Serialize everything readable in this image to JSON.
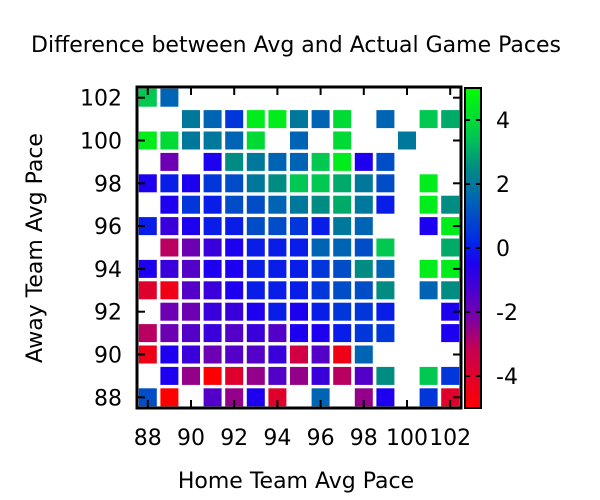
{
  "chart_data": {
    "type": "heatmap",
    "title": "Difference between Avg and Actual Game Paces",
    "xlabel": "Home Team Avg Pace",
    "ylabel": "Away Team Avg Pace",
    "xlim": [
      87.5,
      102.5
    ],
    "ylim": [
      87.5,
      102.5
    ],
    "x_ticks": [
      88,
      90,
      92,
      94,
      96,
      98,
      100,
      102
    ],
    "y_ticks": [
      88,
      90,
      92,
      94,
      96,
      98,
      100,
      102
    ],
    "colorbar": {
      "range": [
        -5,
        5
      ],
      "ticks": [
        -4,
        -2,
        0,
        2,
        4
      ]
    },
    "grid": false,
    "legend": "none",
    "cells": [
      [
        88,
        102,
        3.5
      ],
      [
        89,
        102,
        1.5
      ],
      [
        90,
        101,
        2.0
      ],
      [
        91,
        101,
        1.5
      ],
      [
        92,
        101,
        0.5
      ],
      [
        93,
        101,
        4.5
      ],
      [
        94,
        101,
        4.5
      ],
      [
        95,
        101,
        2.0
      ],
      [
        96,
        101,
        1.5
      ],
      [
        97,
        101,
        4.0
      ],
      [
        99,
        101,
        1.5
      ],
      [
        101,
        101,
        3.5
      ],
      [
        102,
        101,
        3.0
      ],
      [
        88,
        100,
        4.5
      ],
      [
        89,
        100,
        4.0
      ],
      [
        90,
        100,
        2.0
      ],
      [
        91,
        100,
        2.0
      ],
      [
        92,
        100,
        1.5
      ],
      [
        93,
        100,
        4.0
      ],
      [
        95,
        100,
        1.5
      ],
      [
        97,
        100,
        4.0
      ],
      [
        100,
        100,
        2.0
      ],
      [
        89,
        99,
        -2.0
      ],
      [
        91,
        99,
        -0.5
      ],
      [
        92,
        99,
        2.5
      ],
      [
        93,
        99,
        2.0
      ],
      [
        94,
        99,
        1.5
      ],
      [
        95,
        99,
        1.5
      ],
      [
        96,
        99,
        3.5
      ],
      [
        97,
        99,
        4.5
      ],
      [
        98,
        99,
        -0.5
      ],
      [
        99,
        99,
        1.0
      ],
      [
        88,
        98,
        -0.5
      ],
      [
        89,
        98,
        0.0
      ],
      [
        90,
        98,
        -0.5
      ],
      [
        91,
        98,
        0.5
      ],
      [
        92,
        98,
        1.0
      ],
      [
        93,
        98,
        2.0
      ],
      [
        94,
        98,
        2.5
      ],
      [
        95,
        98,
        3.5
      ],
      [
        96,
        98,
        3.5
      ],
      [
        97,
        98,
        3.0
      ],
      [
        98,
        98,
        2.0
      ],
      [
        99,
        98,
        1.0
      ],
      [
        101,
        98,
        4.5
      ],
      [
        89,
        97,
        -0.5
      ],
      [
        90,
        97,
        0.5
      ],
      [
        91,
        97,
        0.0
      ],
      [
        92,
        97,
        1.0
      ],
      [
        93,
        97,
        1.0
      ],
      [
        94,
        97,
        1.5
      ],
      [
        95,
        97,
        2.0
      ],
      [
        96,
        97,
        2.5
      ],
      [
        97,
        97,
        3.0
      ],
      [
        98,
        97,
        2.0
      ],
      [
        99,
        97,
        0.0
      ],
      [
        101,
        97,
        4.5
      ],
      [
        102,
        97,
        2.5
      ],
      [
        88,
        96,
        0.0
      ],
      [
        89,
        96,
        -1.0
      ],
      [
        90,
        96,
        -0.5
      ],
      [
        91,
        96,
        0.0
      ],
      [
        92,
        96,
        0.0
      ],
      [
        93,
        96,
        1.0
      ],
      [
        94,
        96,
        1.0
      ],
      [
        95,
        96,
        0.5
      ],
      [
        96,
        96,
        0.0
      ],
      [
        97,
        96,
        2.0
      ],
      [
        98,
        96,
        1.5
      ],
      [
        101,
        96,
        -0.5
      ],
      [
        102,
        96,
        4.5
      ],
      [
        89,
        95,
        -3.0
      ],
      [
        90,
        95,
        -2.0
      ],
      [
        91,
        95,
        -1.0
      ],
      [
        92,
        95,
        -0.5
      ],
      [
        93,
        95,
        0.0
      ],
      [
        94,
        95,
        0.0
      ],
      [
        95,
        95,
        0.0
      ],
      [
        96,
        95,
        1.5
      ],
      [
        97,
        95,
        1.5
      ],
      [
        98,
        95,
        1.0
      ],
      [
        99,
        95,
        3.5
      ],
      [
        102,
        95,
        3.0
      ],
      [
        88,
        94,
        -0.5
      ],
      [
        89,
        94,
        -1.0
      ],
      [
        90,
        94,
        -1.5
      ],
      [
        91,
        94,
        -0.5
      ],
      [
        92,
        94,
        -0.5
      ],
      [
        93,
        94,
        0.0
      ],
      [
        94,
        94,
        0.0
      ],
      [
        95,
        94,
        0.0
      ],
      [
        96,
        94,
        0.5
      ],
      [
        97,
        94,
        1.0
      ],
      [
        98,
        94,
        2.5
      ],
      [
        99,
        94,
        1.5
      ],
      [
        101,
        94,
        4.5
      ],
      [
        102,
        94,
        4.5
      ],
      [
        88,
        93,
        -4.0
      ],
      [
        89,
        93,
        -4.5
      ],
      [
        90,
        93,
        -1.5
      ],
      [
        91,
        93,
        -1.0
      ],
      [
        92,
        93,
        -0.5
      ],
      [
        93,
        93,
        0.0
      ],
      [
        94,
        93,
        0.0
      ],
      [
        95,
        93,
        0.0
      ],
      [
        96,
        93,
        0.5
      ],
      [
        97,
        93,
        1.0
      ],
      [
        98,
        93,
        1.0
      ],
      [
        99,
        93,
        2.5
      ],
      [
        101,
        93,
        1.5
      ],
      [
        102,
        93,
        2.5
      ],
      [
        89,
        92,
        -2.0
      ],
      [
        90,
        92,
        -2.0
      ],
      [
        91,
        92,
        -1.0
      ],
      [
        92,
        92,
        -1.0
      ],
      [
        93,
        92,
        -0.5
      ],
      [
        94,
        92,
        0.0
      ],
      [
        95,
        92,
        -0.5
      ],
      [
        96,
        92,
        0.0
      ],
      [
        97,
        92,
        0.5
      ],
      [
        98,
        92,
        0.5
      ],
      [
        99,
        92,
        0.0
      ],
      [
        102,
        92,
        -0.5
      ],
      [
        88,
        91,
        -3.0
      ],
      [
        89,
        91,
        -2.0
      ],
      [
        90,
        91,
        -1.5
      ],
      [
        91,
        91,
        -1.0
      ],
      [
        92,
        91,
        -1.5
      ],
      [
        93,
        91,
        -1.0
      ],
      [
        94,
        91,
        -1.5
      ],
      [
        95,
        91,
        -0.5
      ],
      [
        96,
        91,
        -0.5
      ],
      [
        97,
        91,
        0.0
      ],
      [
        98,
        91,
        0.5
      ],
      [
        99,
        91,
        0.5
      ],
      [
        102,
        91,
        -0.5
      ],
      [
        88,
        90,
        -4.5
      ],
      [
        89,
        90,
        -0.5
      ],
      [
        90,
        90,
        -1.0
      ],
      [
        91,
        90,
        -2.0
      ],
      [
        92,
        90,
        -1.5
      ],
      [
        93,
        90,
        -1.5
      ],
      [
        94,
        90,
        -1.0
      ],
      [
        95,
        90,
        -3.5
      ],
      [
        96,
        90,
        -1.5
      ],
      [
        97,
        90,
        -4.5
      ],
      [
        98,
        90,
        1.5
      ],
      [
        89,
        89,
        -0.5
      ],
      [
        90,
        89,
        -2.5
      ],
      [
        91,
        89,
        -5.0
      ],
      [
        92,
        89,
        -4.0
      ],
      [
        93,
        89,
        -2.5
      ],
      [
        94,
        89,
        -1.5
      ],
      [
        95,
        89,
        -2.5
      ],
      [
        96,
        89,
        -1.0
      ],
      [
        97,
        89,
        -3.0
      ],
      [
        98,
        89,
        -1.5
      ],
      [
        99,
        89,
        2.5
      ],
      [
        101,
        89,
        3.5
      ],
      [
        102,
        89,
        0.5
      ],
      [
        88,
        88,
        1.0
      ],
      [
        89,
        88,
        -5.0
      ],
      [
        91,
        88,
        -1.5
      ],
      [
        92,
        88,
        -2.5
      ],
      [
        93,
        88,
        -0.5
      ],
      [
        94,
        88,
        -4.0
      ],
      [
        96,
        88,
        1.5
      ],
      [
        98,
        88,
        -2.5
      ],
      [
        99,
        88,
        -0.5
      ],
      [
        101,
        88,
        0.5
      ],
      [
        102,
        88,
        -4.0
      ]
    ]
  }
}
